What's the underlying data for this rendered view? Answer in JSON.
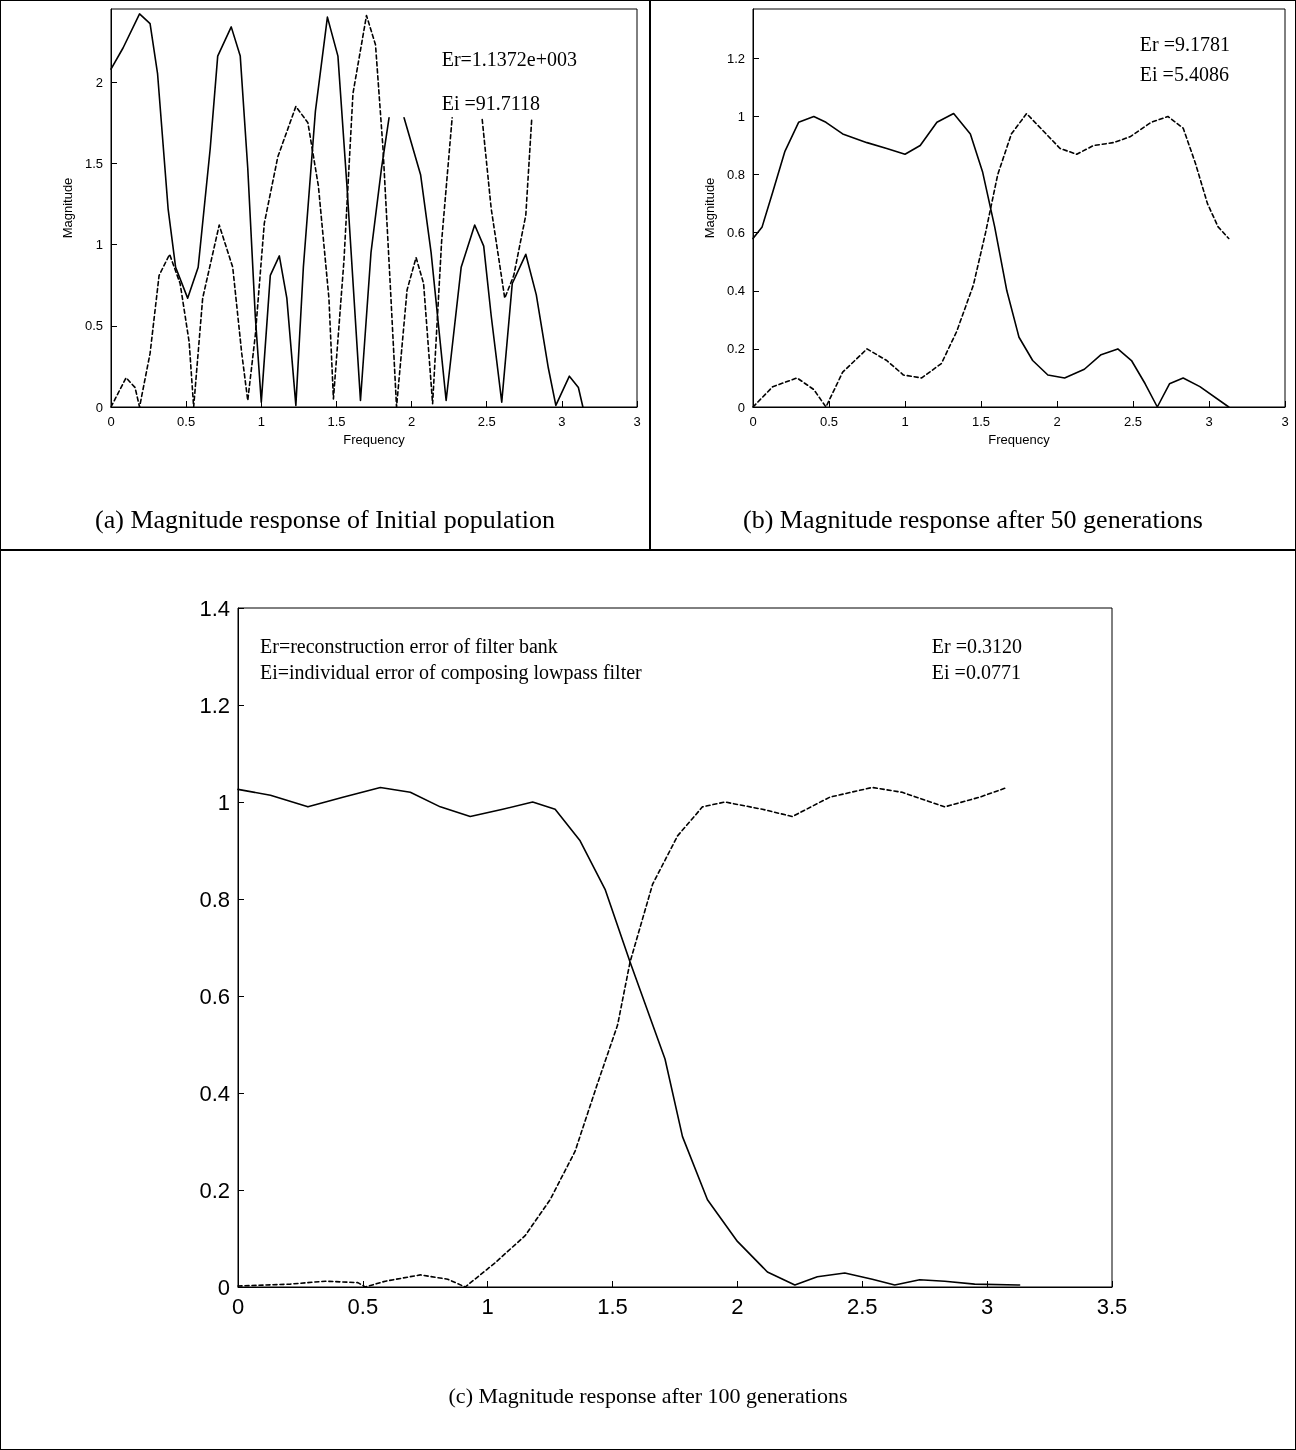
{
  "chart_data": [
    {
      "type": "line",
      "title": "(a) Magnitude response of Initial population",
      "xlabel": "Frequency",
      "ylabel": "Magnitude",
      "xlim": [
        0,
        3.5
      ],
      "ylim": [
        0,
        2.45
      ],
      "xticks": [
        0,
        0.5,
        1,
        1.5,
        2,
        2.5,
        3,
        {
          "value": 3.5,
          "label": "3"
        }
      ],
      "yticks": [
        0,
        0.5,
        1,
        1.5,
        2
      ],
      "annotations": [
        "Er=1.1372e+003\nEi =91.7118"
      ],
      "series": [
        {
          "color": "#000000",
          "line_style": "solid",
          "x": [
            0,
            0.08,
            0.19,
            0.26,
            0.31,
            0.38,
            0.43,
            0.51,
            0.58,
            0.66,
            0.71,
            0.8,
            0.86,
            0.91,
            0.96,
            1.0,
            1.06,
            1.12,
            1.17,
            1.23,
            1.28,
            1.36,
            1.44,
            1.51,
            1.57,
            1.66,
            1.73,
            1.8,
            1.85,
            1.9,
            1.95,
            2.06,
            2.13,
            2.23,
            2.33,
            2.42,
            2.48,
            2.53,
            2.6,
            2.67,
            2.76,
            2.83,
            2.91,
            2.96,
            3.05,
            3.11,
            3.14
          ],
          "values": [
            2.08,
            2.21,
            2.42,
            2.36,
            2.05,
            1.22,
            0.86,
            0.67,
            0.86,
            1.59,
            2.16,
            2.34,
            2.16,
            1.47,
            0.56,
            0.03,
            0.81,
            0.93,
            0.67,
            0.01,
            0.86,
            1.82,
            2.4,
            2.16,
            1.36,
            0.04,
            0.95,
            1.47,
            1.78,
            null,
            1.78,
            1.43,
            0.95,
            0.04,
            0.86,
            1.12,
            0.99,
            0.56,
            0.03,
            0.76,
            0.94,
            0.69,
            0.24,
            0.01,
            0.19,
            0.12,
            0
          ]
        },
        {
          "color": "#000000",
          "line_style": "dashed",
          "x": [
            0,
            0.1,
            0.16,
            0.19,
            0.26,
            0.32,
            0.39,
            0.46,
            0.52,
            0.55,
            0.61,
            0.72,
            0.81,
            0.87,
            0.91,
            0.96,
            1.02,
            1.11,
            1.23,
            1.31,
            1.38,
            1.45,
            1.48,
            1.55,
            1.61,
            1.7,
            1.76,
            1.81,
            1.86,
            1.9,
            1.97,
            2.03,
            2.08,
            2.14,
            2.2,
            2.27,
            2.37,
            2.47,
            2.53,
            2.62,
            2.68,
            2.76,
            2.8
          ],
          "values": [
            0,
            0.18,
            0.12,
            0,
            0.33,
            0.81,
            0.94,
            0.76,
            0.4,
            0,
            0.67,
            1.12,
            0.86,
            0.33,
            0.04,
            0.44,
            1.13,
            1.54,
            1.85,
            1.75,
            1.36,
            0.67,
            0.05,
            0.9,
            1.93,
            2.41,
            2.23,
            1.59,
            0.72,
            0,
            0.72,
            0.92,
            0.76,
            0.02,
            1.02,
            1.78,
            null,
            1.77,
            1.22,
            0.67,
            0.81,
            1.18,
            1.78
          ]
        }
      ]
    },
    {
      "type": "line",
      "title": "(b) Magnitude response after 50 generations",
      "xlabel": "Frequency",
      "ylabel": "Magnitude",
      "xlim": [
        0,
        3.5
      ],
      "ylim": [
        0,
        1.37
      ],
      "xticks": [
        0,
        0.5,
        1,
        1.5,
        2,
        2.5,
        3,
        {
          "value": 3.5,
          "label": "3"
        }
      ],
      "yticks": [
        0,
        0.2,
        0.4,
        0.6,
        0.8,
        1,
        1.2
      ],
      "annotations": [
        "Er =9.1781\nEi =5.4086"
      ],
      "series": [
        {
          "color": "#000000",
          "line_style": "solid",
          "x": [
            0,
            0.06,
            0.13,
            0.21,
            0.3,
            0.4,
            0.48,
            0.59,
            0.75,
            0.88,
            1.0,
            1.1,
            1.21,
            1.32,
            1.43,
            1.51,
            1.59,
            1.67,
            1.75,
            1.84,
            1.94,
            2.05,
            2.18,
            2.29,
            2.4,
            2.49,
            2.58,
            2.66,
            2.74,
            2.83,
            2.94,
            3.13
          ],
          "values": [
            0.58,
            0.62,
            0.74,
            0.88,
            0.98,
            1.0,
            0.98,
            0.94,
            0.91,
            0.89,
            0.87,
            0.9,
            0.98,
            1.01,
            0.94,
            0.81,
            0.62,
            0.4,
            0.24,
            0.16,
            0.11,
            0.1,
            0.13,
            0.18,
            0.2,
            0.16,
            0.08,
            0,
            0.08,
            0.1,
            0.07,
            0
          ]
        },
        {
          "color": "#000000",
          "line_style": "dashed",
          "x": [
            0,
            0.13,
            0.29,
            0.4,
            0.48,
            0.59,
            0.75,
            0.88,
            0.99,
            1.11,
            1.24,
            1.34,
            1.45,
            1.53,
            1.61,
            1.7,
            1.8,
            1.91,
            2.02,
            2.13,
            2.24,
            2.37,
            2.48,
            2.62,
            2.73,
            2.83,
            2.91,
            2.99,
            3.06,
            3.13
          ],
          "values": [
            0,
            0.07,
            0.1,
            0.06,
            0,
            0.12,
            0.2,
            0.16,
            0.11,
            0.1,
            0.15,
            0.26,
            0.42,
            0.6,
            0.8,
            0.94,
            1.01,
            0.95,
            0.89,
            0.87,
            0.9,
            0.91,
            0.93,
            0.98,
            1.0,
            0.96,
            0.84,
            0.7,
            0.62,
            0.58
          ]
        }
      ]
    },
    {
      "type": "line",
      "title": "(c) Magnitude response after 100 generations",
      "xlim": [
        0,
        3.5
      ],
      "ylim": [
        0,
        1.4
      ],
      "xticks": [
        0,
        0.5,
        1,
        1.5,
        2,
        2.5,
        3,
        3.5
      ],
      "yticks": [
        0,
        0.2,
        0.4,
        0.6,
        0.8,
        1,
        1.2,
        1.4
      ],
      "annotations": [
        "Er=reconstruction error of filter bank\nEi=individual error of composing lowpass filter",
        "Er =0.3120\nEi =0.0771"
      ],
      "series": [
        {
          "color": "#000000",
          "line_style": "solid",
          "x": [
            0,
            0.13,
            0.28,
            0.42,
            0.57,
            0.69,
            0.81,
            0.93,
            1.06,
            1.18,
            1.27,
            1.37,
            1.47,
            1.57,
            1.64,
            1.71,
            1.78,
            1.88,
            2.0,
            2.12,
            2.23,
            2.32,
            2.43,
            2.54,
            2.63,
            2.73,
            2.83,
            2.95,
            3.13
          ],
          "values": [
            1.026,
            1.014,
            0.99,
            1.01,
            1.03,
            1.02,
            0.99,
            0.97,
            0.985,
            1.0,
            0.985,
            0.92,
            0.82,
            0.67,
            0.57,
            0.47,
            0.31,
            0.18,
            0.094,
            0.031,
            0.004,
            0.021,
            0.029,
            0.016,
            0.004,
            0.015,
            0.012,
            0.006,
            0.004
          ]
        },
        {
          "color": "#000000",
          "line_style": "dashed",
          "x": [
            0,
            0.21,
            0.35,
            0.48,
            0.51,
            0.59,
            0.73,
            0.84,
            0.91,
            1.03,
            1.15,
            1.25,
            1.35,
            1.44,
            1.52,
            1.57,
            1.66,
            1.76,
            1.86,
            1.95,
            2.1,
            2.22,
            2.37,
            2.54,
            2.66,
            2.83,
            2.97,
            3.08
          ],
          "values": [
            0.002,
            0.006,
            0.012,
            0.009,
            0,
            0.012,
            0.025,
            0.016,
            0,
            0.05,
            0.106,
            0.18,
            0.28,
            0.42,
            0.54,
            0.67,
            0.83,
            0.93,
            0.99,
            1.0,
            0.985,
            0.97,
            1.01,
            1.03,
            1.02,
            0.99,
            1.01,
            1.03
          ]
        }
      ]
    }
  ]
}
